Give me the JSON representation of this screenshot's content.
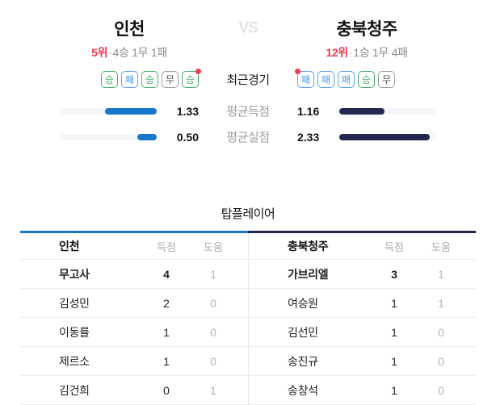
{
  "colors": {
    "home_accent": "#1777cb",
    "away_accent": "#232850",
    "rank_red": "#ee3b4e",
    "latest_dot_red": "#ef3e52",
    "win_green": "#45b36b",
    "loss_blue": "#459af0",
    "draw_gray": "#9a9a9a"
  },
  "match": {
    "vs_label": "VS",
    "recent_label": "최근경기",
    "home": {
      "name": "인천",
      "rank": "5위",
      "rank_sep": "·",
      "record": "4승 1무 1패",
      "form": [
        "승",
        "패",
        "승",
        "무",
        "승"
      ],
      "latest_index": 4
    },
    "away": {
      "name": "충북청주",
      "rank": "12위",
      "rank_sep": "·",
      "record": "1승 1무 4패",
      "form": [
        "패",
        "패",
        "패",
        "승",
        "무"
      ],
      "latest_index": 0
    }
  },
  "stats": {
    "scale_max": 2.5,
    "rows": [
      {
        "label": "평균득점",
        "home": "1.33",
        "away": "1.16",
        "home_val": 1.33,
        "away_val": 1.16
      },
      {
        "label": "평균실점",
        "home": "0.50",
        "away": "2.33",
        "home_val": 0.5,
        "away_val": 2.33
      }
    ]
  },
  "top_players": {
    "title": "탑플레이어",
    "score_col": "득점",
    "assist_col": "도움",
    "home": {
      "team": "인천",
      "rows": [
        {
          "name": "무고사",
          "score": "4",
          "assist": "1"
        },
        {
          "name": "김성민",
          "score": "2",
          "assist": "0"
        },
        {
          "name": "이동률",
          "score": "1",
          "assist": "0"
        },
        {
          "name": "제르소",
          "score": "1",
          "assist": "0"
        },
        {
          "name": "김건희",
          "score": "0",
          "assist": "1"
        }
      ]
    },
    "away": {
      "team": "충북청주",
      "rows": [
        {
          "name": "가브리엘",
          "score": "3",
          "assist": "1"
        },
        {
          "name": "여승원",
          "score": "1",
          "assist": "1"
        },
        {
          "name": "김선민",
          "score": "1",
          "assist": "0"
        },
        {
          "name": "송진규",
          "score": "1",
          "assist": "0"
        },
        {
          "name": "송창석",
          "score": "1",
          "assist": "0"
        }
      ]
    }
  }
}
